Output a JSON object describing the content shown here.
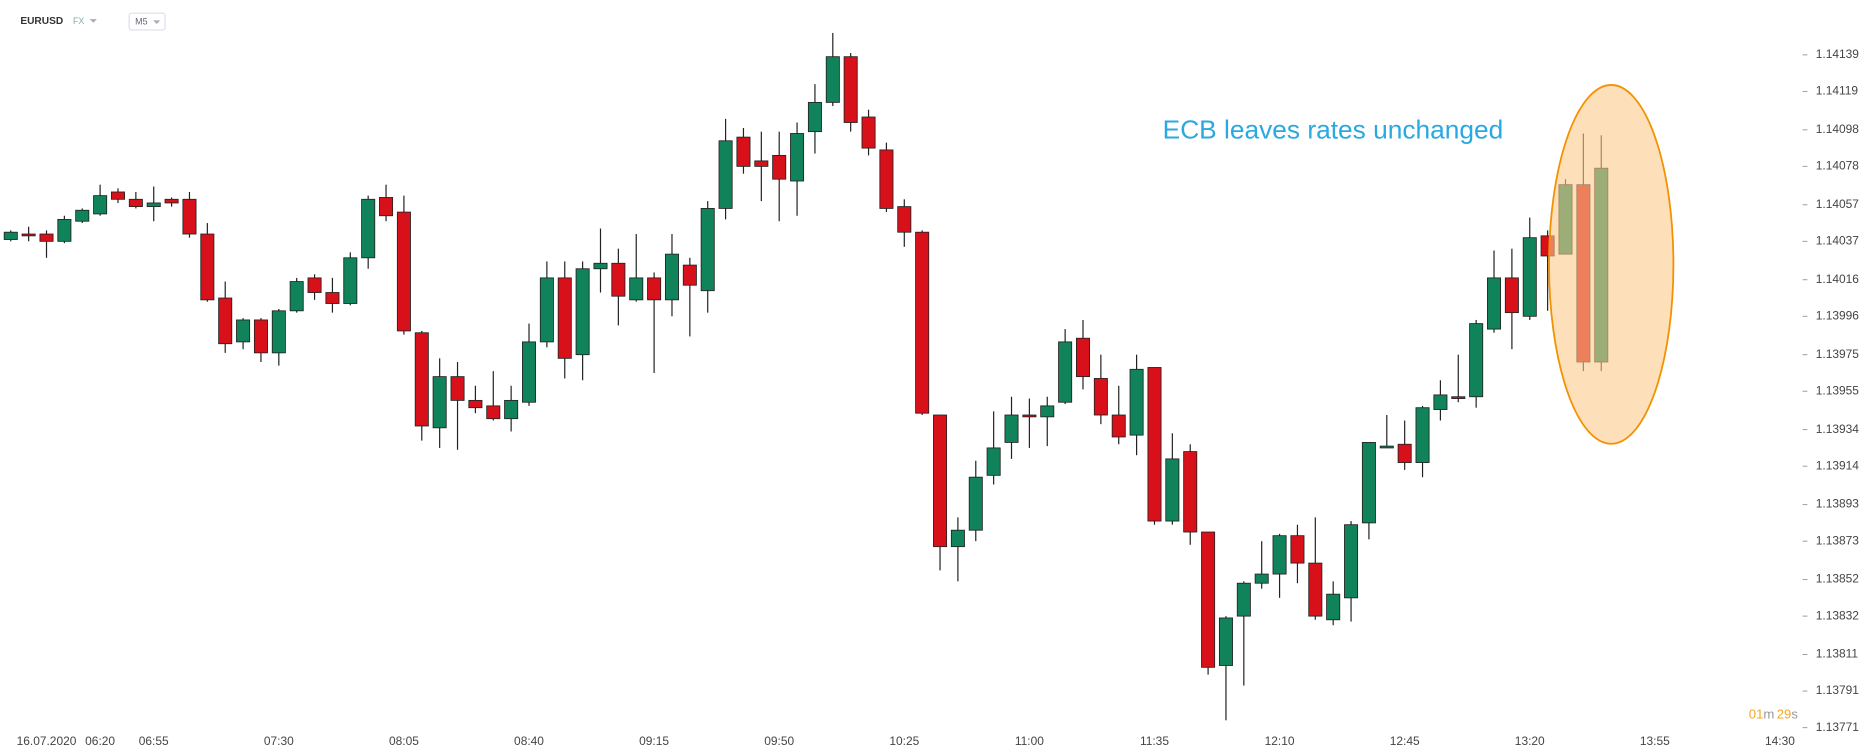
{
  "header": {
    "symbol": "EURUSD",
    "market": "FX",
    "timeframe": "M5"
  },
  "chart_data": {
    "type": "candlestick",
    "categories": [
      null,
      null,
      "16.07.2020",
      null,
      null,
      "06:20",
      null,
      null,
      "06:55",
      null,
      null,
      null,
      null,
      null,
      null,
      "07:30",
      null,
      null,
      null,
      null,
      null,
      null,
      "08:05",
      null,
      null,
      null,
      null,
      null,
      null,
      "08:40",
      null,
      null,
      null,
      null,
      null,
      null,
      "09:15",
      null,
      null,
      null,
      null,
      null,
      null,
      "09:50",
      null,
      null,
      null,
      null,
      null,
      null,
      "10:25",
      null,
      null,
      null,
      null,
      null,
      null,
      "11:00",
      null,
      null,
      null,
      null,
      null,
      null,
      "11:35",
      null,
      null,
      null,
      null,
      null,
      null,
      "12:10",
      null,
      null,
      null,
      null,
      null,
      null,
      "12:45",
      null,
      null,
      null,
      null,
      null,
      null,
      "13:20",
      null,
      null,
      null,
      null,
      null,
      null,
      "13:55",
      null,
      null,
      null,
      null,
      null,
      null,
      "14:30",
      null
    ],
    "open": [
      1.14038,
      1.14041,
      1.14041,
      1.14037,
      1.14048,
      1.14052,
      1.14064,
      1.1406,
      1.14056,
      1.1406,
      1.1406,
      1.14041,
      1.14006,
      1.13982,
      1.13994,
      1.13976,
      1.13999,
      1.14017,
      1.14009,
      1.14003,
      1.14028,
      1.14061,
      1.14053,
      1.13987,
      1.13935,
      1.13963,
      1.1395,
      1.13947,
      1.1394,
      1.13949,
      1.13982,
      1.14017,
      1.13975,
      1.14022,
      1.14025,
      1.14005,
      1.14017,
      1.14005,
      1.14024,
      1.1401,
      1.14055,
      1.14094,
      1.14081,
      1.14084,
      1.1407,
      1.14097,
      1.14113,
      1.14138,
      1.14105,
      1.14087,
      1.14056,
      1.14042,
      1.13942,
      1.1387,
      1.13879,
      1.13909,
      1.13927,
      1.13942,
      1.13941,
      1.13949,
      1.13984,
      1.13962,
      1.13942,
      1.13931,
      1.13968,
      1.13884,
      1.13922,
      1.13878,
      1.13805,
      1.13832,
      1.1385,
      1.13855,
      1.13876,
      1.13861,
      1.1383,
      1.13842,
      1.13883,
      1.13924,
      1.13926,
      1.13916,
      1.13945,
      1.13952,
      1.13952,
      1.13989,
      1.14017,
      1.13996,
      1.1404,
      1.1403,
      1.14068,
      1.13971,
      null,
      null,
      null,
      null,
      null,
      null,
      null,
      null,
      null,
      null,
      null
    ],
    "high": [
      1.14043,
      1.14045,
      1.14043,
      1.14051,
      1.14055,
      1.14068,
      1.14066,
      1.14064,
      1.14067,
      1.14061,
      1.14064,
      1.14047,
      1.14015,
      1.13995,
      1.13995,
      1.14,
      1.14017,
      1.14019,
      1.14017,
      1.14031,
      1.14062,
      1.14068,
      1.14062,
      1.13988,
      1.13973,
      1.13971,
      1.13958,
      1.13966,
      1.13958,
      1.13992,
      1.14026,
      1.14026,
      1.14026,
      1.14044,
      1.14033,
      1.14041,
      1.1402,
      1.14041,
      1.14028,
      1.14059,
      1.14104,
      1.14099,
      1.14097,
      1.14097,
      1.14102,
      1.14123,
      1.14151,
      1.1414,
      1.14109,
      1.14091,
      1.1406,
      1.14043,
      1.13942,
      1.13886,
      1.13917,
      1.13944,
      1.13952,
      1.13951,
      1.13952,
      1.13989,
      1.13994,
      1.13975,
      1.13958,
      1.13975,
      1.13968,
      1.13932,
      1.13926,
      1.13878,
      1.13832,
      1.13851,
      1.13873,
      1.13877,
      1.13882,
      1.13886,
      1.13851,
      1.13884,
      1.13927,
      1.13942,
      1.13939,
      1.13947,
      1.13961,
      1.13975,
      1.13994,
      1.14032,
      1.14033,
      1.1405,
      1.14043,
      1.14071,
      1.14096,
      1.14095,
      null,
      null,
      null,
      null,
      null,
      null,
      null,
      null,
      null,
      null,
      null
    ],
    "low": [
      1.14037,
      1.14037,
      1.14028,
      1.14036,
      1.14047,
      1.14051,
      1.14058,
      1.14055,
      1.14048,
      1.14056,
      1.14039,
      1.14004,
      1.13976,
      1.13978,
      1.13971,
      1.13969,
      1.13998,
      1.14005,
      1.13998,
      1.14002,
      1.14022,
      1.14048,
      1.13986,
      1.13928,
      1.13924,
      1.13923,
      1.13943,
      1.13939,
      1.13933,
      1.13947,
      1.13979,
      1.13962,
      1.13961,
      1.14009,
      1.13991,
      1.14004,
      1.13965,
      1.13996,
      1.13985,
      1.13998,
      1.14049,
      1.14074,
      1.14059,
      1.14048,
      1.14051,
      1.14085,
      1.14111,
      1.14097,
      1.14084,
      1.14053,
      1.14034,
      1.13942,
      1.13857,
      1.13851,
      1.13873,
      1.13904,
      1.13918,
      1.13924,
      1.13925,
      1.13948,
      1.13956,
      1.13937,
      1.13926,
      1.1392,
      1.13882,
      1.13882,
      1.13871,
      1.138,
      1.13775,
      1.13794,
      1.13847,
      1.13842,
      1.1385,
      1.1383,
      1.13827,
      1.13829,
      1.13874,
      1.13924,
      1.13912,
      1.13908,
      1.13939,
      1.13949,
      1.13946,
      1.13987,
      1.13978,
      1.13994,
      1.13999,
      1.1403,
      1.13966,
      1.13966,
      null,
      null,
      null,
      null,
      null,
      null,
      null,
      null,
      null,
      null,
      null
    ],
    "close": [
      1.14042,
      1.1404,
      1.14037,
      1.14049,
      1.14054,
      1.14062,
      1.1406,
      1.14056,
      1.14058,
      1.14058,
      1.14041,
      1.14005,
      1.13981,
      1.13994,
      1.13976,
      1.13999,
      1.14015,
      1.14009,
      1.14003,
      1.14028,
      1.1406,
      1.14051,
      1.13988,
      1.13936,
      1.13963,
      1.1395,
      1.13946,
      1.1394,
      1.1395,
      1.13982,
      1.14017,
      1.13973,
      1.14022,
      1.14025,
      1.14007,
      1.14017,
      1.14005,
      1.1403,
      1.14013,
      1.14055,
      1.14092,
      1.14078,
      1.14078,
      1.14071,
      1.14096,
      1.14113,
      1.14138,
      1.14102,
      1.14088,
      1.14055,
      1.14042,
      1.13943,
      1.1387,
      1.13879,
      1.13908,
      1.13924,
      1.13942,
      1.13941,
      1.13947,
      1.13982,
      1.13963,
      1.13942,
      1.1393,
      1.13967,
      1.13884,
      1.13918,
      1.13878,
      1.13804,
      1.13831,
      1.1385,
      1.13855,
      1.13876,
      1.13861,
      1.13832,
      1.13844,
      1.13882,
      1.13927,
      1.13925,
      1.13916,
      1.13946,
      1.13953,
      1.13951,
      1.13992,
      1.14017,
      1.13998,
      1.14039,
      1.14029,
      1.14068,
      1.13971,
      1.14077,
      null,
      null,
      null,
      null,
      null,
      null,
      null,
      null,
      null,
      null,
      null
    ],
    "up_color": "#11835a",
    "down_color": "#d8101a",
    "ylim": [
      1.13764,
      1.14169
    ],
    "yticks": [
      1.14139,
      1.14119,
      1.14098,
      1.14078,
      1.14057,
      1.14037,
      1.14016,
      1.13996,
      1.13975,
      1.13955,
      1.13934,
      1.13914,
      1.13893,
      1.13873,
      1.13852,
      1.13832,
      1.13811,
      1.13791,
      1.13771
    ],
    "annotation": "ECB leaves rates unchanged"
  },
  "countdown": {
    "minutes": "01",
    "minutes_unit": "m",
    "seconds": "29",
    "seconds_unit": "s"
  }
}
